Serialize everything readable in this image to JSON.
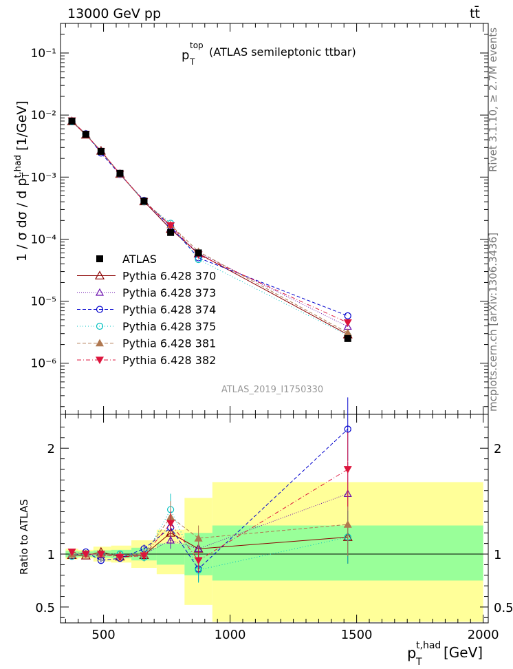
{
  "header": {
    "energy_label": "13000 GeV pp",
    "process_label": "tt̄",
    "rivet_label": "Rivet 3.1.10, ≥ 2.7M events",
    "mcplots_label": "mcplots.cern.ch [arXiv:1306.3436]",
    "analysis_id": "ATLAS_2019_I1750330"
  },
  "chart_data": [
    {
      "type": "scatter",
      "panel": "main",
      "title_main": "p",
      "title_sup": "top",
      "title_sub": "T",
      "title_rest": "(ATLAS semileptonic ttbar)",
      "ylabel": "1 / σ dσ / d p_T^{t,had} [1/GeV]",
      "y_scale": "log",
      "ylim": [
        1.5e-07,
        0.3
      ],
      "xlim": [
        330,
        2020
      ],
      "y_ticks": [
        "10⁻⁶",
        "10⁻⁵",
        "10⁻⁴",
        "10⁻³",
        "10⁻²",
        "10⁻¹"
      ],
      "legend_position": "center-left",
      "x": [
        375,
        430,
        490,
        565,
        660,
        765,
        875,
        1465
      ],
      "series": [
        {
          "name": "ATLAS",
          "color": "#000000",
          "marker": "square-filled",
          "values": [
            0.008,
            0.0049,
            0.0026,
            0.00115,
            0.00041,
            0.000128,
            6e-05,
            2.5e-06
          ]
        },
        {
          "name": "Pythia 6.428 370",
          "color": "#8b0000",
          "marker": "triangle-up-open",
          "dash": "solid",
          "values": [
            0.0079,
            0.0048,
            0.00265,
            0.00112,
            0.000405,
            0.000145,
            5.85e-05,
            2.9e-06
          ]
        },
        {
          "name": "Pythia 6.428 373",
          "color": "#6a0dad",
          "marker": "triangle-up-open-small",
          "dash": "dots",
          "values": [
            0.008,
            0.0049,
            0.0026,
            0.00114,
            0.00041,
            0.00015,
            6e-05,
            3.9e-06
          ]
        },
        {
          "name": "Pythia 6.428 374",
          "color": "#0000cd",
          "marker": "circle-open",
          "dash": "dashed",
          "values": [
            0.0078,
            0.005,
            0.00245,
            0.0011,
            0.00042,
            0.00016,
            5e-05,
            5.8e-06
          ]
        },
        {
          "name": "Pythia 6.428 375",
          "color": "#00c0c0",
          "marker": "circle-open",
          "dash": "dotted",
          "values": [
            0.0078,
            0.0049,
            0.0026,
            0.00112,
            0.0004,
            0.00018,
            4.7e-05,
            2.8e-06
          ]
        },
        {
          "name": "Pythia 6.428 381",
          "color": "#b07850",
          "marker": "triangle-up-filled",
          "dash": "dashed",
          "values": [
            0.008,
            0.0049,
            0.0026,
            0.00113,
            0.00041,
            0.00017,
            6.3e-05,
            3.1e-06
          ]
        },
        {
          "name": "Pythia 6.428 382",
          "color": "#dc143c",
          "marker": "triangle-down-filled",
          "dash": "dashdot",
          "values": [
            0.0081,
            0.0049,
            0.0026,
            0.00112,
            0.000405,
            0.000165,
            5.6e-05,
            4.5e-06
          ]
        }
      ]
    },
    {
      "type": "scatter",
      "panel": "ratio",
      "ylabel": "Ratio to ATLAS",
      "xlabel_main": "p",
      "xlabel_sup": "t,had",
      "xlabel_sub": "T",
      "xlabel_rest": "[GeV]",
      "ylim": [
        0.35,
        2.32
      ],
      "y_ticks": [
        "0.5",
        "1",
        "2"
      ],
      "x_ticks": [
        "500",
        "1000",
        "1500",
        "2000"
      ],
      "x": [
        375,
        430,
        490,
        565,
        660,
        765,
        875,
        1465
      ],
      "bins": [
        [
          350,
          400
        ],
        [
          400,
          460
        ],
        [
          460,
          530
        ],
        [
          530,
          610
        ],
        [
          610,
          710
        ],
        [
          710,
          820
        ],
        [
          820,
          930
        ],
        [
          930,
          2000
        ]
      ],
      "band_green": [
        [
          0.97,
          1.03
        ],
        [
          0.975,
          1.025
        ],
        [
          0.965,
          1.035
        ],
        [
          0.96,
          1.04
        ],
        [
          0.94,
          1.06
        ],
        [
          0.9,
          1.1
        ],
        [
          0.8,
          1.2
        ],
        [
          0.75,
          1.27
        ]
      ],
      "band_yellow": [
        [
          0.95,
          1.05
        ],
        [
          0.96,
          1.04
        ],
        [
          0.93,
          1.07
        ],
        [
          0.92,
          1.08
        ],
        [
          0.87,
          1.13
        ],
        [
          0.81,
          1.23
        ],
        [
          0.52,
          1.53
        ],
        [
          0.36,
          1.68
        ]
      ],
      "series": [
        {
          "name": "Pythia 6.428 370",
          "values": [
            0.99,
            0.985,
            1.02,
            0.975,
            0.99,
            1.2,
            1.05,
            1.16
          ],
          "errors": [
            0.02,
            0.02,
            0.02,
            0.03,
            0.04,
            0.08,
            0.1,
            0.25
          ]
        },
        {
          "name": "Pythia 6.428 373",
          "values": [
            1.0,
            1.0,
            0.99,
            0.99,
            1.0,
            1.13,
            1.05,
            1.57
          ],
          "errors": [
            0.02,
            0.02,
            0.02,
            0.03,
            0.04,
            0.08,
            0.1,
            0.3
          ]
        },
        {
          "name": "Pythia 6.428 374",
          "values": [
            0.98,
            1.02,
            0.94,
            0.96,
            1.05,
            1.25,
            0.86,
            2.18
          ],
          "errors": [
            0.02,
            0.02,
            0.02,
            0.03,
            0.04,
            0.08,
            0.12,
            0.3
          ]
        },
        {
          "name": "Pythia 6.428 375",
          "values": [
            0.98,
            1.0,
            1.0,
            1.0,
            0.97,
            1.42,
            0.85,
            1.16
          ],
          "errors": [
            0.02,
            0.02,
            0.02,
            0.03,
            0.04,
            0.15,
            0.12,
            0.25
          ]
        },
        {
          "name": "Pythia 6.428 381",
          "values": [
            1.0,
            1.0,
            1.0,
            0.99,
            1.0,
            1.35,
            1.15,
            1.28
          ],
          "errors": [
            0.02,
            0.02,
            0.02,
            0.03,
            0.04,
            0.15,
            0.12,
            0.3
          ]
        },
        {
          "name": "Pythia 6.428 382",
          "values": [
            1.02,
            1.0,
            1.0,
            0.97,
            0.985,
            1.29,
            0.94,
            1.8
          ],
          "errors": [
            0.02,
            0.02,
            0.02,
            0.03,
            0.04,
            0.12,
            0.12,
            0.35
          ]
        }
      ]
    }
  ]
}
